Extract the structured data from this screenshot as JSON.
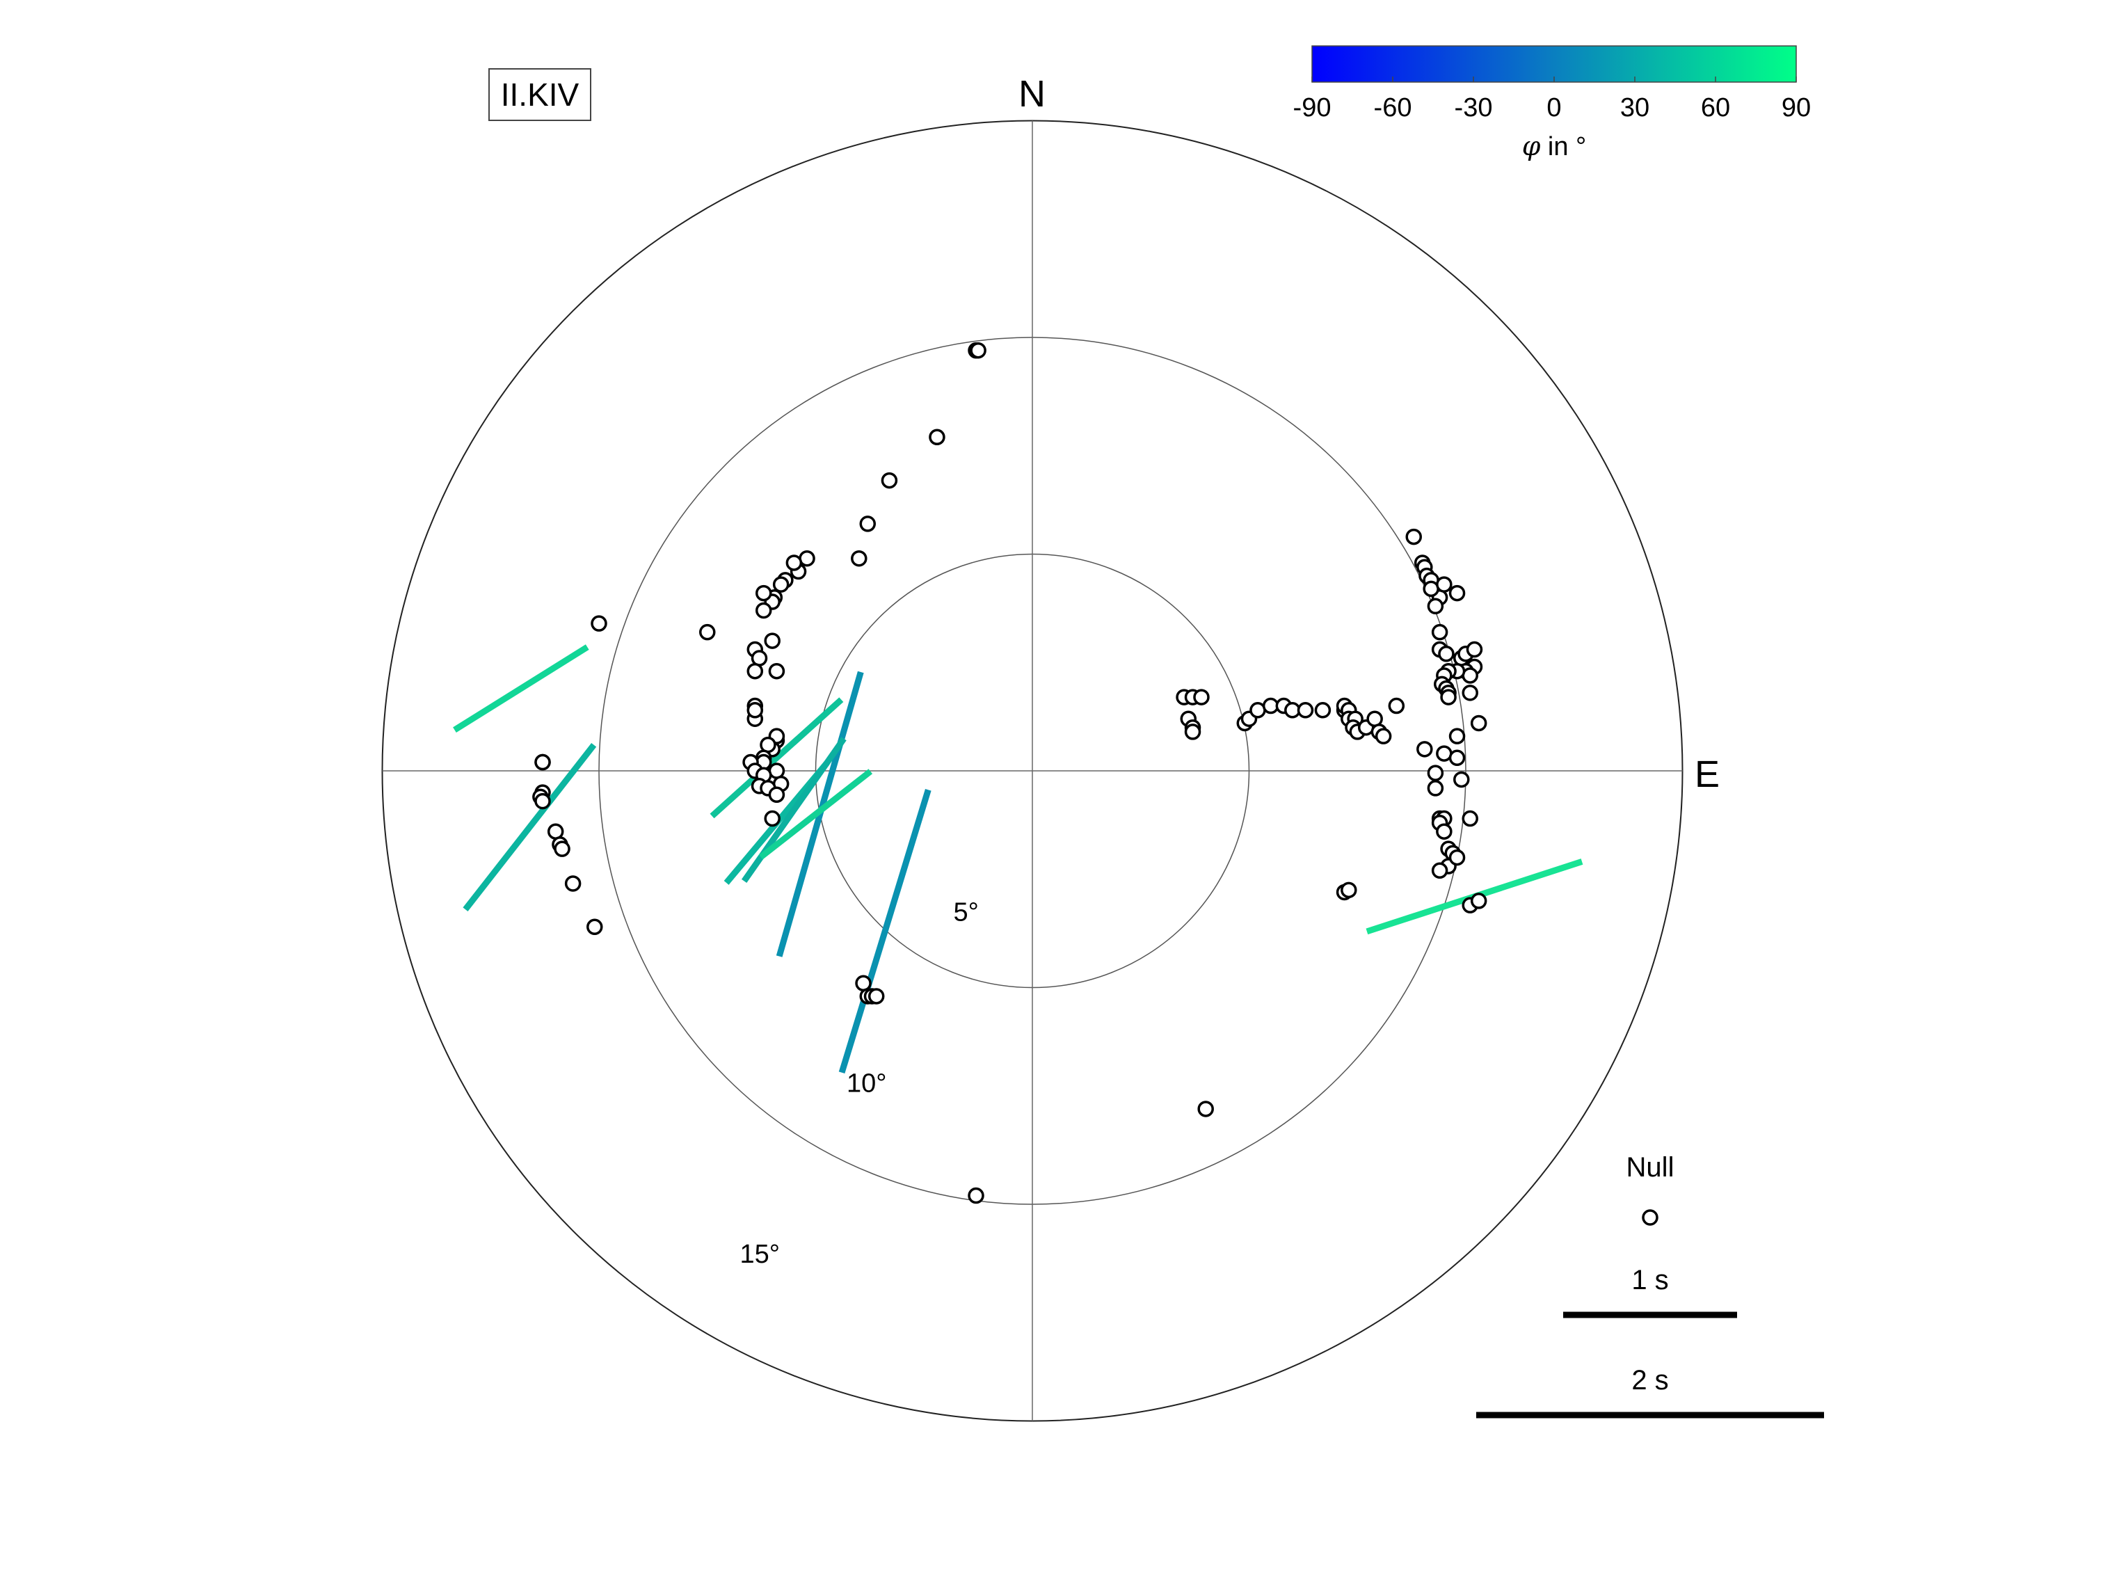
{
  "chart_data": {
    "type": "polar-scatter",
    "station": "II.KIV",
    "directions": {
      "north": "N",
      "east": "E"
    },
    "rings": [
      {
        "distance_deg": 5,
        "label": "5°"
      },
      {
        "distance_deg": 10,
        "label": "10°"
      },
      {
        "distance_deg": 15,
        "label": "15°"
      }
    ],
    "colorbar": {
      "min": -90,
      "max": 90,
      "ticks": [
        "-90",
        "-60",
        "-30",
        "0",
        "30",
        "60",
        "90"
      ],
      "label_symbol": "φ",
      "label_unit": "in °",
      "color_low": "#0000ff",
      "color_high": "#00ff88"
    },
    "nulls": [
      [
        -1.3,
        9.7
      ],
      [
        -1.25,
        9.7
      ],
      [
        -2.2,
        7.7
      ],
      [
        -3.3,
        6.7
      ],
      [
        -3.8,
        5.7
      ],
      [
        -5.2,
        4.9
      ],
      [
        -5.4,
        4.6
      ],
      [
        -5.5,
        4.8
      ],
      [
        -5.7,
        4.4
      ],
      [
        -5.8,
        4.3
      ],
      [
        -5.95,
        4.0
      ],
      [
        -6.0,
        3.9
      ],
      [
        -6.2,
        4.1
      ],
      [
        -6.2,
        3.7
      ],
      [
        -6.0,
        3.0
      ],
      [
        -6.4,
        2.8
      ],
      [
        -6.3,
        2.6
      ],
      [
        -7.5,
        3.2
      ],
      [
        -6.4,
        2.3
      ],
      [
        -6.4,
        1.5
      ],
      [
        -5.9,
        2.3
      ],
      [
        -6.4,
        1.2
      ],
      [
        -6.4,
        1.4
      ],
      [
        -5.9,
        0.7
      ],
      [
        -5.9,
        0.8
      ],
      [
        -6.0,
        0.5
      ],
      [
        -6.1,
        0.6
      ],
      [
        -6.2,
        0.3
      ],
      [
        -6.2,
        0.2
      ],
      [
        -6.5,
        0.2
      ],
      [
        -6.4,
        0.0
      ],
      [
        -5.9,
        0.0
      ],
      [
        -6.2,
        -0.1
      ],
      [
        -5.8,
        -0.3
      ],
      [
        -6.3,
        -0.35
      ],
      [
        -6.1,
        -0.4
      ],
      [
        -5.9,
        -0.55
      ],
      [
        -6.0,
        -1.1
      ],
      [
        -11.3,
        0.2
      ],
      [
        -11.3,
        0.2
      ],
      [
        -11.3,
        -0.5
      ],
      [
        -11.35,
        -0.6
      ],
      [
        -11.3,
        -0.7
      ],
      [
        -11.0,
        -1.4
      ],
      [
        -10.9,
        -1.7
      ],
      [
        -10.85,
        -1.8
      ],
      [
        -10.6,
        -2.6
      ],
      [
        -10.1,
        -3.6
      ],
      [
        -10.0,
        3.4
      ],
      [
        -4.0,
        4.9
      ],
      [
        -3.9,
        -4.9
      ],
      [
        -3.8,
        -5.2
      ],
      [
        -3.7,
        -5.2
      ],
      [
        -3.6,
        -5.2
      ],
      [
        -1.3,
        -9.8
      ],
      [
        4.0,
        -7.8
      ],
      [
        7.2,
        -2.8
      ],
      [
        3.5,
        1.7
      ],
      [
        3.7,
        1.7
      ],
      [
        3.9,
        1.7
      ],
      [
        3.6,
        1.2
      ],
      [
        3.7,
        1.0
      ],
      [
        3.7,
        0.9
      ],
      [
        4.9,
        1.1
      ],
      [
        5.0,
        1.2
      ],
      [
        5.2,
        1.4
      ],
      [
        5.5,
        1.5
      ],
      [
        5.8,
        1.5
      ],
      [
        6.0,
        1.4
      ],
      [
        6.3,
        1.4
      ],
      [
        6.7,
        1.4
      ],
      [
        7.2,
        1.4
      ],
      [
        7.2,
        1.5
      ],
      [
        7.3,
        1.4
      ],
      [
        7.3,
        1.2
      ],
      [
        7.45,
        1.2
      ],
      [
        7.4,
        1.0
      ],
      [
        7.5,
        0.9
      ],
      [
        7.7,
        1.0
      ],
      [
        7.9,
        1.2
      ],
      [
        8.0,
        0.9
      ],
      [
        8.1,
        0.8
      ],
      [
        8.4,
        1.5
      ],
      [
        8.8,
        5.4
      ],
      [
        9.0,
        4.8
      ],
      [
        9.05,
        4.7
      ],
      [
        9.1,
        4.5
      ],
      [
        9.2,
        4.4
      ],
      [
        9.4,
        4.0
      ],
      [
        9.2,
        4.2
      ],
      [
        9.5,
        4.3
      ],
      [
        9.8,
        4.1
      ],
      [
        9.3,
        3.8
      ],
      [
        9.4,
        3.2
      ],
      [
        9.4,
        2.8
      ],
      [
        9.55,
        2.7
      ],
      [
        9.9,
        2.6
      ],
      [
        10.0,
        2.7
      ],
      [
        10.2,
        2.8
      ],
      [
        10.2,
        2.4
      ],
      [
        10.0,
        2.3
      ],
      [
        10.1,
        2.2
      ],
      [
        9.8,
        2.3
      ],
      [
        9.6,
        2.3
      ],
      [
        9.5,
        2.2
      ],
      [
        9.45,
        2.0
      ],
      [
        9.55,
        1.9
      ],
      [
        9.6,
        1.8
      ],
      [
        9.6,
        1.7
      ],
      [
        10.1,
        1.8
      ],
      [
        10.3,
        1.1
      ],
      [
        9.8,
        0.8
      ],
      [
        9.5,
        0.4
      ],
      [
        9.8,
        0.3
      ],
      [
        9.05,
        0.5
      ],
      [
        9.3,
        -0.05
      ],
      [
        9.3,
        -0.4
      ],
      [
        9.9,
        -0.2
      ],
      [
        9.4,
        -1.1
      ],
      [
        9.5,
        -1.1
      ],
      [
        9.4,
        -1.2
      ],
      [
        9.5,
        -1.4
      ],
      [
        10.1,
        -1.1
      ],
      [
        9.6,
        -1.8
      ],
      [
        9.7,
        -1.9
      ],
      [
        9.6,
        -2.2
      ],
      [
        9.8,
        -2.0
      ],
      [
        9.4,
        -2.3
      ],
      [
        7.3,
        -2.75
      ],
      [
        10.1,
        -3.1
      ],
      [
        10.3,
        -3.0
      ]
    ],
    "splits": [
      {
        "x": -3.4,
        "y": -3.7,
        "phi": 17,
        "dt": 1.7,
        "color": "#0a92b0"
      },
      {
        "x": -4.9,
        "y": -1.0,
        "phi": 16,
        "dt": 1.7,
        "color": "#0a92b0"
      },
      {
        "x": -5.9,
        "y": 0.3,
        "phi": 48,
        "dt": 1.0,
        "color": "#0fc39a"
      },
      {
        "x": -5.9,
        "y": -1.2,
        "phi": 40,
        "dt": 0.9,
        "color": "#0cb8a0"
      },
      {
        "x": -5.5,
        "y": -0.9,
        "phi": 35,
        "dt": 1.0,
        "color": "#0cb09f"
      },
      {
        "x": -5.0,
        "y": -1.0,
        "phi": 52,
        "dt": 0.8,
        "color": "#12d195"
      },
      {
        "x": -11.8,
        "y": 1.9,
        "phi": 58,
        "dt": 0.9,
        "color": "#12d697"
      },
      {
        "x": -11.6,
        "y": -1.3,
        "phi": 38,
        "dt": 1.2,
        "color": "#0cb5a0"
      },
      {
        "x": 10.2,
        "y": -2.9,
        "phi": 72,
        "dt": 1.3,
        "color": "#18e394"
      }
    ],
    "legend": {
      "null_label": "Null",
      "scale_1_label": "1 s",
      "scale_2_label": "2 s",
      "scale_1_value": 1,
      "scale_2_value": 2
    }
  }
}
